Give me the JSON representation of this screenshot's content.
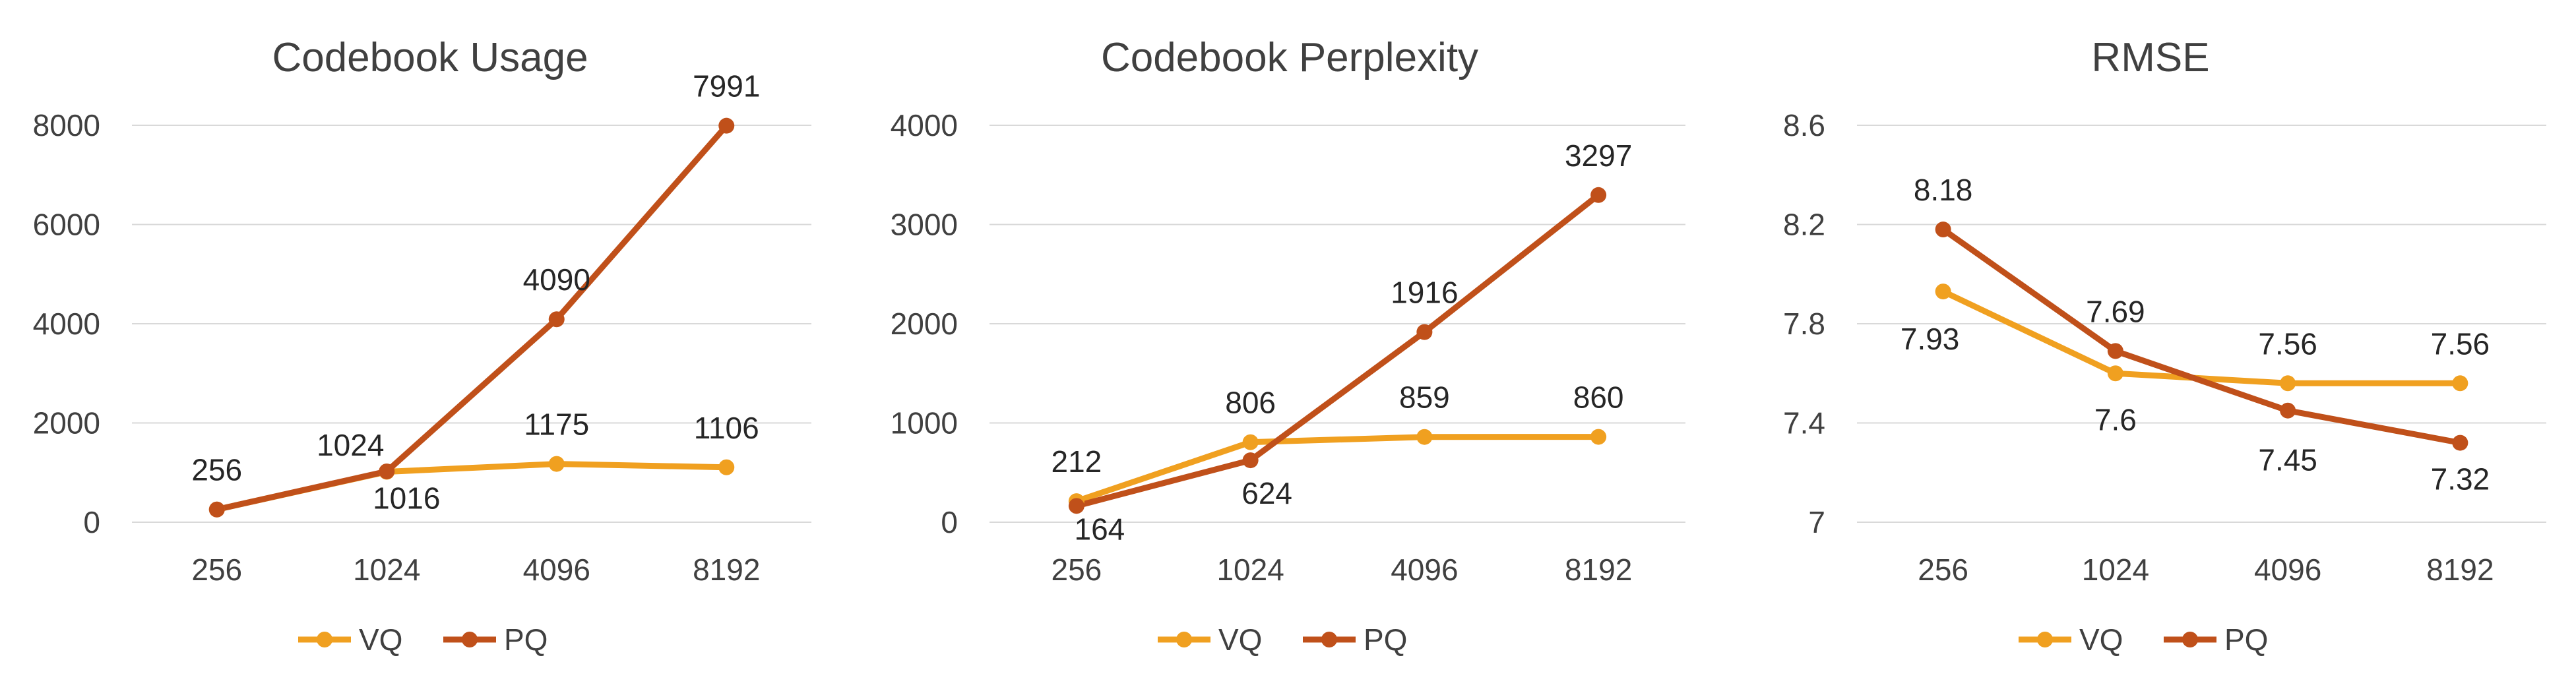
{
  "chart_data": [
    {
      "type": "line",
      "title": "Codebook Usage",
      "categories": [
        "256",
        "1024",
        "4096",
        "8192"
      ],
      "ylim": [
        0,
        8000
      ],
      "yticks": [
        "0",
        "2000",
        "4000",
        "6000",
        "8000"
      ],
      "series": [
        {
          "name": "VQ",
          "color": "#f0a020",
          "values": [
            256,
            1016,
            1175,
            1106
          ],
          "labels": [
            "",
            "1016",
            "1175",
            "1106"
          ]
        },
        {
          "name": "PQ",
          "color": "#c0501a",
          "values": [
            256,
            1024,
            4090,
            7991
          ],
          "labels": [
            "256",
            "1024",
            "4090",
            "7991"
          ]
        }
      ]
    },
    {
      "type": "line",
      "title": "Codebook Perplexity",
      "categories": [
        "256",
        "1024",
        "4096",
        "8192"
      ],
      "ylim": [
        0,
        4000
      ],
      "yticks": [
        "0",
        "1000",
        "2000",
        "3000",
        "4000"
      ],
      "series": [
        {
          "name": "VQ",
          "color": "#f0a020",
          "values": [
            212,
            806,
            859,
            860
          ],
          "labels": [
            "212",
            "806",
            "859",
            "860"
          ]
        },
        {
          "name": "PQ",
          "color": "#c0501a",
          "values": [
            164,
            624,
            1916,
            3297
          ],
          "labels": [
            "164",
            "624",
            "1916",
            "3297"
          ]
        }
      ]
    },
    {
      "type": "line",
      "title": "RMSE",
      "categories": [
        "256",
        "1024",
        "4096",
        "8192"
      ],
      "ylim": [
        7,
        8.6
      ],
      "yticks": [
        "7",
        "7.4",
        "7.8",
        "8.2",
        "8.6"
      ],
      "series": [
        {
          "name": "VQ",
          "color": "#f0a020",
          "values": [
            7.93,
            7.6,
            7.56,
            7.56
          ],
          "labels": [
            "7.93",
            "7.6",
            "7.56",
            "7.56"
          ]
        },
        {
          "name": "PQ",
          "color": "#c0501a",
          "values": [
            8.18,
            7.69,
            7.45,
            7.32
          ],
          "labels": [
            "8.18",
            "7.69",
            "7.45",
            "7.32"
          ]
        }
      ]
    }
  ]
}
